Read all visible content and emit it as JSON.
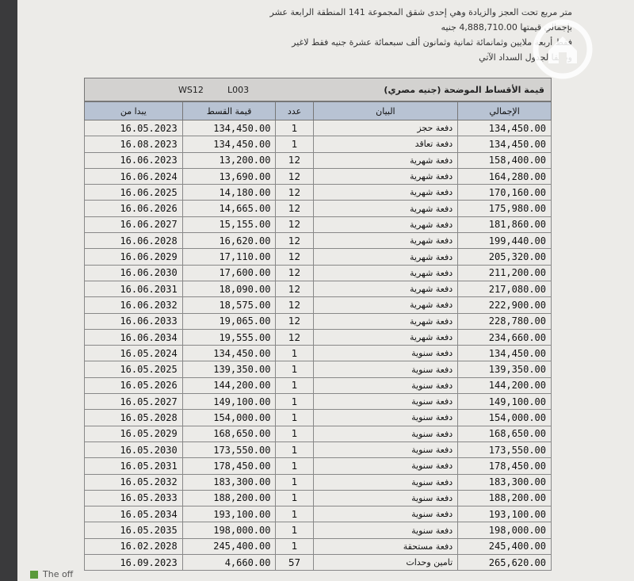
{
  "header": {
    "lines": [
      "متر مربع تحت العجز والزيادة وهي إحدى شقق المجموعة 141 المنطقة الرابعة عشر",
      "بإجمالي قيمتها   4,888,710.00   جنيه",
      "فقط أربعة ملايين وثمانمائة ثمانية وثمانون ألف سبعمائة عشرة جنيه فقط لاغير",
      "وطبقا لجدول السداد الآتي"
    ]
  },
  "table": {
    "title": "قيمة الأقساط الموضحة (جنيه مصري)",
    "codes": [
      "WS12",
      "L003"
    ],
    "columns": [
      "يبدا من",
      "قيمة القسط",
      "عدد",
      "البيان",
      "الإجمالي"
    ],
    "rows": [
      [
        "16.05.2023",
        "134,450.00",
        "1",
        "دفعة حجز",
        "134,450.00"
      ],
      [
        "16.08.2023",
        "134,450.00",
        "1",
        "دفعة تعاقد",
        "134,450.00"
      ],
      [
        "16.06.2023",
        "13,200.00",
        "12",
        "دفعة شهرية",
        "158,400.00"
      ],
      [
        "16.06.2024",
        "13,690.00",
        "12",
        "دفعة شهرية",
        "164,280.00"
      ],
      [
        "16.06.2025",
        "14,180.00",
        "12",
        "دفعة شهرية",
        "170,160.00"
      ],
      [
        "16.06.2026",
        "14,665.00",
        "12",
        "دفعة شهرية",
        "175,980.00"
      ],
      [
        "16.06.2027",
        "15,155.00",
        "12",
        "دفعة شهرية",
        "181,860.00"
      ],
      [
        "16.06.2028",
        "16,620.00",
        "12",
        "دفعة شهرية",
        "199,440.00"
      ],
      [
        "16.06.2029",
        "17,110.00",
        "12",
        "دفعة شهرية",
        "205,320.00"
      ],
      [
        "16.06.2030",
        "17,600.00",
        "12",
        "دفعة شهرية",
        "211,200.00"
      ],
      [
        "16.06.2031",
        "18,090.00",
        "12",
        "دفعة شهرية",
        "217,080.00"
      ],
      [
        "16.06.2032",
        "18,575.00",
        "12",
        "دفعة شهرية",
        "222,900.00"
      ],
      [
        "16.06.2033",
        "19,065.00",
        "12",
        "دفعة شهرية",
        "228,780.00"
      ],
      [
        "16.06.2034",
        "19,555.00",
        "12",
        "دفعة شهرية",
        "234,660.00"
      ],
      [
        "16.05.2024",
        "134,450.00",
        "1",
        "دفعة سنوية",
        "134,450.00"
      ],
      [
        "16.05.2025",
        "139,350.00",
        "1",
        "دفعة سنوية",
        "139,350.00"
      ],
      [
        "16.05.2026",
        "144,200.00",
        "1",
        "دفعة سنوية",
        "144,200.00"
      ],
      [
        "16.05.2027",
        "149,100.00",
        "1",
        "دفعة سنوية",
        "149,100.00"
      ],
      [
        "16.05.2028",
        "154,000.00",
        "1",
        "دفعة سنوية",
        "154,000.00"
      ],
      [
        "16.05.2029",
        "168,650.00",
        "1",
        "دفعة سنوية",
        "168,650.00"
      ],
      [
        "16.05.2030",
        "173,550.00",
        "1",
        "دفعة سنوية",
        "173,550.00"
      ],
      [
        "16.05.2031",
        "178,450.00",
        "1",
        "دفعة سنوية",
        "178,450.00"
      ],
      [
        "16.05.2032",
        "183,300.00",
        "1",
        "دفعة سنوية",
        "183,300.00"
      ],
      [
        "16.05.2033",
        "188,200.00",
        "1",
        "دفعة سنوية",
        "188,200.00"
      ],
      [
        "16.05.2034",
        "193,100.00",
        "1",
        "دفعة سنوية",
        "193,100.00"
      ],
      [
        "16.05.2035",
        "198,000.00",
        "1",
        "دفعة سنوية",
        "198,000.00"
      ],
      [
        "16.02.2028",
        "245,400.00",
        "1",
        "دفعة مستحقة",
        "245,400.00"
      ],
      [
        "16.09.2023",
        "4,660.00",
        "57",
        "تامين وحدات",
        "265,620.00"
      ]
    ]
  },
  "footer": "The off"
}
